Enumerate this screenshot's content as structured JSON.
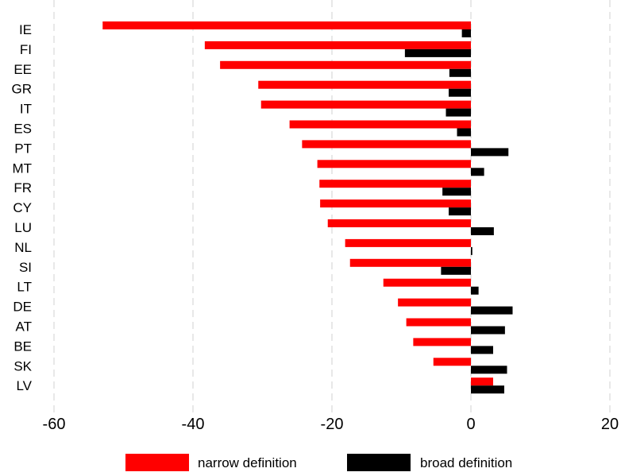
{
  "chart_data": {
    "type": "bar",
    "orientation": "horizontal",
    "categories": [
      "IE",
      "FI",
      "EE",
      "GR",
      "IT",
      "ES",
      "PT",
      "MT",
      "FR",
      "CY",
      "LU",
      "NL",
      "SI",
      "LT",
      "DE",
      "AT",
      "BE",
      "SK",
      "LV"
    ],
    "series": [
      {
        "name": "narrow definition",
        "color": "#ff0000",
        "values": [
          -53.0,
          -38.3,
          -36.1,
          -30.6,
          -30.2,
          -26.1,
          -24.3,
          -22.1,
          -21.8,
          -21.7,
          -20.6,
          -18.1,
          -17.4,
          -12.6,
          -10.5,
          -9.3,
          -8.3,
          -5.4,
          3.2
        ]
      },
      {
        "name": "broad definition",
        "color": "#000000",
        "values": [
          -1.3,
          -9.5,
          -3.1,
          -3.2,
          -3.6,
          -2.0,
          5.4,
          1.9,
          -4.1,
          -3.2,
          3.3,
          0.2,
          -4.3,
          1.1,
          6.0,
          4.9,
          3.2,
          5.2,
          4.8
        ]
      }
    ],
    "xlim": [
      -60,
      20
    ],
    "xticks": [
      "-60",
      "-40",
      "-20",
      "0",
      "20"
    ],
    "grid": "vertical dashed",
    "legend": "bottom"
  }
}
